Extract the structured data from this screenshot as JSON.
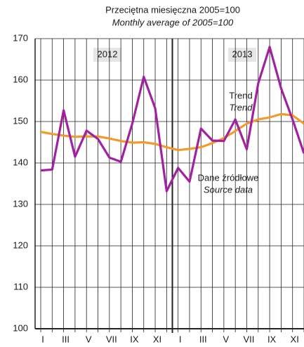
{
  "chart_data": {
    "type": "line",
    "title": "Przeciętna miesięczna 2005=100",
    "subtitle": "Monthly average of 2005=100",
    "year_labels": [
      "2012",
      "2013"
    ],
    "categories": [
      "I",
      null,
      "III",
      null,
      "V",
      null,
      "VII",
      null,
      "IX",
      null,
      "XI",
      null,
      "I",
      null,
      "III",
      null,
      "V",
      null,
      "VII",
      null,
      "IX",
      null,
      "XI",
      null
    ],
    "series": [
      {
        "name": "Dane źródłowe",
        "name_en": "Source data",
        "color": "#a0229f",
        "values": [
          138.2,
          138.4,
          152.7,
          141.5,
          147.8,
          145.8,
          141.3,
          140.3,
          149.5,
          160.8,
          153.2,
          133.2,
          138.8,
          135.5,
          148.3,
          145.4,
          145.3,
          150.5,
          143.3,
          159.2,
          168.0,
          158.0,
          150.5,
          142.3
        ]
      },
      {
        "name": "Trend",
        "name_en": "Trend",
        "color": "#f39a2b",
        "values": [
          147.5,
          147.0,
          146.6,
          146.3,
          146.4,
          146.4,
          145.9,
          145.3,
          144.9,
          145.0,
          144.6,
          143.8,
          143.1,
          143.4,
          143.8,
          144.8,
          146.0,
          147.7,
          149.5,
          150.5,
          151.0,
          151.8,
          151.5,
          149.5
        ]
      }
    ],
    "ylim": [
      100,
      170
    ],
    "yticks": [
      100,
      110,
      120,
      130,
      140,
      150,
      160,
      170
    ],
    "grid": true
  }
}
